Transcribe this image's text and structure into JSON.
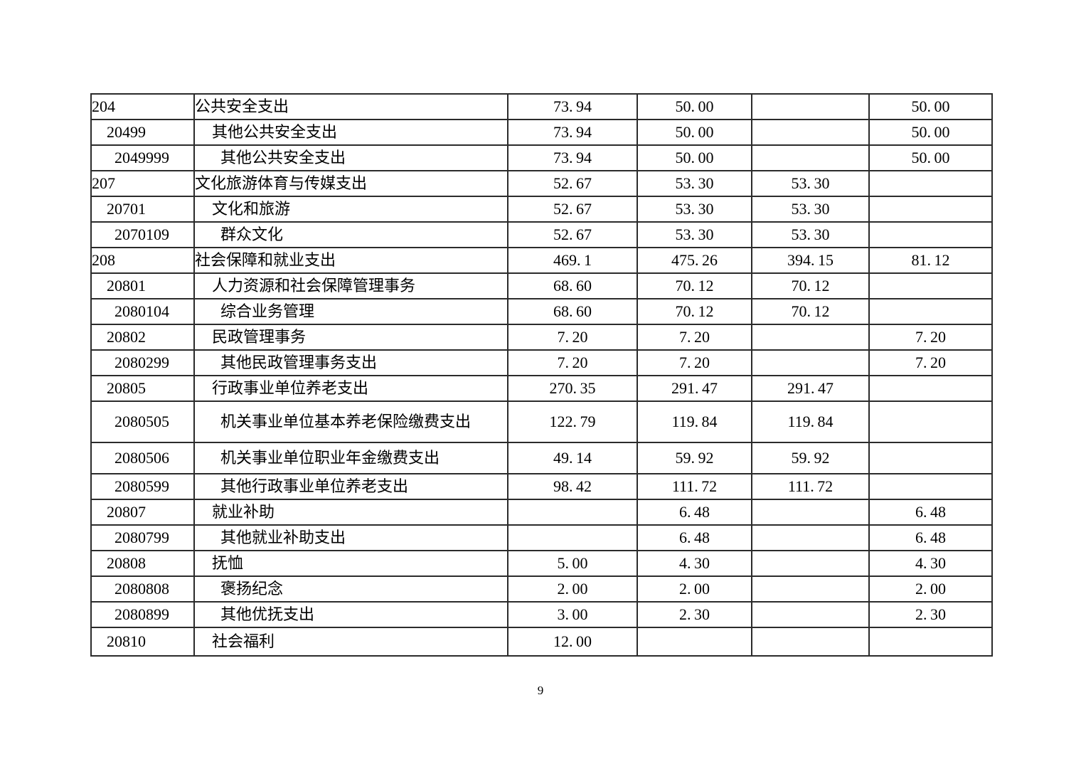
{
  "page": {
    "number": "9"
  },
  "colors": {
    "background": "#ffffff",
    "border": "#2b2b2b",
    "text": "#000000"
  },
  "table": {
    "rows": [
      {
        "code": "204",
        "name": "公共安全支出",
        "values": [
          "73.94",
          "50.00",
          "",
          "50.00"
        ]
      },
      {
        "code": "20499",
        "name": "其他公共安全支出",
        "values": [
          "73.94",
          "50.00",
          "",
          "50.00"
        ]
      },
      {
        "code": "2049999",
        "name": "其他公共安全支出",
        "values": [
          "73.94",
          "50.00",
          "",
          "50.00"
        ]
      },
      {
        "code": "207",
        "name": "文化旅游体育与传媒支出",
        "values": [
          "52.67",
          "53.30",
          "53.30",
          ""
        ]
      },
      {
        "code": "20701",
        "name": "文化和旅游",
        "values": [
          "52.67",
          "53.30",
          "53.30",
          ""
        ]
      },
      {
        "code": "2070109",
        "name": "群众文化",
        "values": [
          "52.67",
          "53.30",
          "53.30",
          ""
        ]
      },
      {
        "code": "208",
        "name": "社会保障和就业支出",
        "values": [
          "469.1",
          "475.26",
          "394.15",
          "81.12"
        ]
      },
      {
        "code": "20801",
        "name": "人力资源和社会保障管理事务",
        "values": [
          "68.60",
          "70.12",
          "70.12",
          ""
        ]
      },
      {
        "code": "2080104",
        "name": "综合业务管理",
        "values": [
          "68.60",
          "70.12",
          "70.12",
          ""
        ]
      },
      {
        "code": "20802",
        "name": "民政管理事务",
        "values": [
          "7.20",
          "7.20",
          "",
          "7.20"
        ]
      },
      {
        "code": "2080299",
        "name": "其他民政管理事务支出",
        "values": [
          "7.20",
          "7.20",
          "",
          "7.20"
        ]
      },
      {
        "code": "20805",
        "name": "行政事业单位养老支出",
        "values": [
          "270.35",
          "291.47",
          "291.47",
          ""
        ]
      },
      {
        "code": "2080505",
        "name": "机关事业单位基本养老保险缴费支出",
        "values": [
          "122.79",
          "119.84",
          "119.84",
          ""
        ]
      },
      {
        "code": "2080506",
        "name": "机关事业单位职业年金缴费支出",
        "values": [
          "49.14",
          "59.92",
          "59.92",
          ""
        ]
      },
      {
        "code": "2080599",
        "name": "其他行政事业单位养老支出",
        "values": [
          "98.42",
          "111.72",
          "111.72",
          ""
        ]
      },
      {
        "code": "20807",
        "name": "就业补助",
        "values": [
          "",
          "6.48",
          "",
          "6.48"
        ]
      },
      {
        "code": "2080799",
        "name": "其他就业补助支出",
        "values": [
          "",
          "6.48",
          "",
          "6.48"
        ]
      },
      {
        "code": "20808",
        "name": "抚恤",
        "values": [
          "5.00",
          "4.30",
          "",
          "4.30"
        ]
      },
      {
        "code": "2080808",
        "name": "褒扬纪念",
        "values": [
          "2.00",
          "2.00",
          "",
          "2.00"
        ]
      },
      {
        "code": "2080899",
        "name": "其他优抚支出",
        "values": [
          "3.00",
          "2.30",
          "",
          "2.30"
        ]
      },
      {
        "code": "20810",
        "name": "社会福利",
        "values": [
          "12.00",
          "",
          "",
          ""
        ]
      }
    ]
  }
}
